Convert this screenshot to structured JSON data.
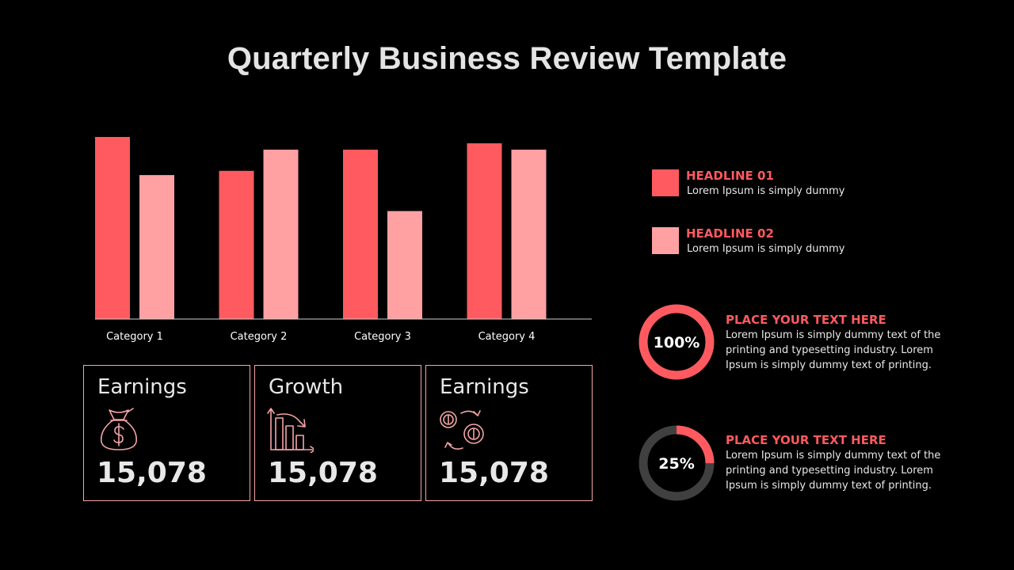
{
  "title": "Quarterly Business Review Template",
  "colors": {
    "primary": "#ff5a5f",
    "secondary": "#ffa0a3",
    "track": "#404040",
    "border": "#f4a5a5",
    "text": "#e8e8e8"
  },
  "chart_data": {
    "type": "bar",
    "categories": [
      "Category 1",
      "Category 2",
      "Category 3",
      "Category 4"
    ],
    "series": [
      {
        "name": "HEADLINE 01",
        "values": [
          4.3,
          3.5,
          4.0,
          4.15
        ]
      },
      {
        "name": "HEADLINE 02",
        "values": [
          3.4,
          4.0,
          2.55,
          4.0
        ]
      }
    ],
    "ylim": [
      0,
      4.3
    ],
    "grid": false,
    "legend": "right",
    "title": "",
    "xlabel": "",
    "ylabel": ""
  },
  "legend": [
    {
      "headline": "HEADLINE 01",
      "text": "Lorem Ipsum is simply dummy"
    },
    {
      "headline": "HEADLINE 02",
      "text": "Lorem Ipsum is simply dummy"
    }
  ],
  "kpis": [
    {
      "label": "Earnings",
      "value": "15,078",
      "icon": "money-bag-icon"
    },
    {
      "label": "Growth",
      "value": "15,078",
      "icon": "bar-chart-decline-icon"
    },
    {
      "label": "Earnings",
      "value": "15,078",
      "icon": "coins-exchange-icon"
    }
  ],
  "progress": [
    {
      "percent_label": "100%",
      "percent": 100,
      "headline": "PLACE YOUR TEXT HERE",
      "text": "Lorem Ipsum is simply dummy text of the printing and typesetting industry. Lorem Ipsum is simply dummy text of printing."
    },
    {
      "percent_label": "25%",
      "percent": 25,
      "headline": "PLACE YOUR TEXT HERE",
      "text": "Lorem Ipsum is simply dummy text of the printing and typesetting industry. Lorem Ipsum is simply dummy text of printing."
    }
  ]
}
